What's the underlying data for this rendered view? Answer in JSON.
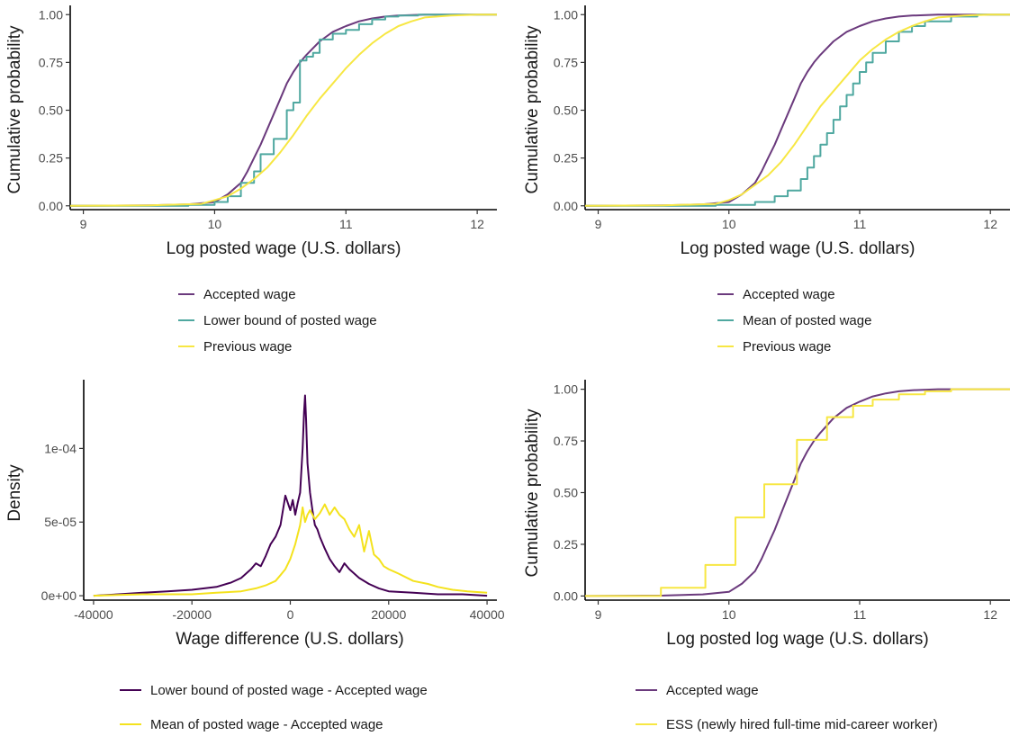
{
  "chart_data": [
    {
      "id": "panel-top-left",
      "type": "line",
      "xlabel": "Log posted wage (U.S. dollars)",
      "ylabel": "Cumulative probability",
      "xlim": [
        8.9,
        12.15
      ],
      "ylim": [
        -0.02,
        1.02
      ],
      "xticks": [
        9,
        10,
        11,
        12
      ],
      "xtick_labels": [
        "9",
        "10",
        "11",
        "12"
      ],
      "yticks": [
        0,
        0.25,
        0.5,
        0.75,
        1
      ],
      "ytick_labels": [
        "0.00",
        "0.25",
        "0.50",
        "0.75",
        "1.00"
      ],
      "grid": false,
      "legend_position": "bottom",
      "series": [
        {
          "name": "Accepted wage",
          "color": "#6b3a7d",
          "step": false,
          "x": [
            8.9,
            9.5,
            9.8,
            10.0,
            10.1,
            10.2,
            10.25,
            10.3,
            10.35,
            10.4,
            10.45,
            10.5,
            10.55,
            10.6,
            10.65,
            10.7,
            10.8,
            10.9,
            11.0,
            11.1,
            11.2,
            11.3,
            11.4,
            11.6,
            12.15
          ],
          "y": [
            0,
            0.002,
            0.008,
            0.02,
            0.06,
            0.12,
            0.18,
            0.25,
            0.32,
            0.4,
            0.48,
            0.56,
            0.64,
            0.7,
            0.75,
            0.79,
            0.86,
            0.91,
            0.94,
            0.965,
            0.98,
            0.99,
            0.995,
            1.0,
            1.0
          ]
        },
        {
          "name": "Lower bound of posted wage",
          "color": "#4fa8a0",
          "step": true,
          "x": [
            8.9,
            9.8,
            10.0,
            10.1,
            10.2,
            10.3,
            10.35,
            10.45,
            10.55,
            10.6,
            10.65,
            10.7,
            10.75,
            10.8,
            10.9,
            11.0,
            11.1,
            11.2,
            11.3,
            11.4,
            11.55,
            12.15
          ],
          "y": [
            0,
            0.005,
            0.02,
            0.05,
            0.12,
            0.18,
            0.27,
            0.35,
            0.5,
            0.54,
            0.76,
            0.78,
            0.8,
            0.87,
            0.9,
            0.92,
            0.95,
            0.975,
            0.99,
            0.995,
            1.0,
            1.0
          ]
        },
        {
          "name": "Previous wage",
          "color": "#f7e743",
          "step": false,
          "x": [
            8.9,
            9.5,
            9.9,
            10.0,
            10.1,
            10.2,
            10.3,
            10.4,
            10.5,
            10.6,
            10.7,
            10.8,
            10.9,
            11.0,
            11.1,
            11.2,
            11.3,
            11.4,
            11.5,
            11.6,
            11.8,
            12.0,
            12.15
          ],
          "y": [
            0,
            0.002,
            0.01,
            0.03,
            0.05,
            0.09,
            0.14,
            0.2,
            0.28,
            0.37,
            0.47,
            0.56,
            0.64,
            0.72,
            0.79,
            0.85,
            0.9,
            0.94,
            0.965,
            0.985,
            0.995,
            1.0,
            1.0
          ]
        }
      ]
    },
    {
      "id": "panel-top-right",
      "type": "line",
      "xlabel": "Log posted wage (U.S. dollars)",
      "ylabel": "Cumulative probability",
      "xlim": [
        8.9,
        12.15
      ],
      "ylim": [
        -0.02,
        1.02
      ],
      "xticks": [
        9,
        10,
        11,
        12
      ],
      "xtick_labels": [
        "9",
        "10",
        "11",
        "12"
      ],
      "yticks": [
        0,
        0.25,
        0.5,
        0.75,
        1
      ],
      "ytick_labels": [
        "0.00",
        "0.25",
        "0.50",
        "0.75",
        "1.00"
      ],
      "grid": false,
      "legend_position": "bottom",
      "series": [
        {
          "name": "Accepted wage",
          "color": "#6b3a7d",
          "step": false,
          "x": [
            8.9,
            9.5,
            9.8,
            10.0,
            10.1,
            10.2,
            10.25,
            10.3,
            10.35,
            10.4,
            10.45,
            10.5,
            10.55,
            10.6,
            10.65,
            10.7,
            10.8,
            10.9,
            11.0,
            11.1,
            11.2,
            11.3,
            11.4,
            11.6,
            12.15
          ],
          "y": [
            0,
            0.002,
            0.008,
            0.02,
            0.06,
            0.12,
            0.18,
            0.25,
            0.32,
            0.4,
            0.48,
            0.56,
            0.64,
            0.7,
            0.75,
            0.79,
            0.86,
            0.91,
            0.94,
            0.965,
            0.98,
            0.99,
            0.995,
            1.0,
            1.0
          ]
        },
        {
          "name": "Mean of posted wage",
          "color": "#4fa8a0",
          "step": true,
          "x": [
            8.9,
            9.9,
            10.2,
            10.35,
            10.45,
            10.55,
            10.6,
            10.65,
            10.7,
            10.75,
            10.8,
            10.85,
            10.9,
            10.95,
            11.0,
            11.05,
            11.1,
            11.2,
            11.3,
            11.4,
            11.5,
            11.7,
            11.9,
            12.15
          ],
          "y": [
            0,
            0.005,
            0.02,
            0.05,
            0.08,
            0.14,
            0.2,
            0.26,
            0.32,
            0.38,
            0.45,
            0.52,
            0.58,
            0.64,
            0.7,
            0.75,
            0.8,
            0.86,
            0.91,
            0.94,
            0.965,
            0.99,
            1.0,
            1.0
          ]
        },
        {
          "name": "Previous wage",
          "color": "#f7e743",
          "step": false,
          "x": [
            8.9,
            9.5,
            9.9,
            10.0,
            10.1,
            10.2,
            10.3,
            10.4,
            10.5,
            10.6,
            10.7,
            10.8,
            10.9,
            11.0,
            11.1,
            11.2,
            11.3,
            11.4,
            11.5,
            11.6,
            11.8,
            12.0,
            12.15
          ],
          "y": [
            0,
            0.002,
            0.01,
            0.03,
            0.06,
            0.11,
            0.16,
            0.23,
            0.32,
            0.42,
            0.52,
            0.6,
            0.68,
            0.76,
            0.82,
            0.87,
            0.91,
            0.94,
            0.965,
            0.985,
            0.995,
            1.0,
            1.0
          ]
        }
      ]
    },
    {
      "id": "panel-bottom-left",
      "type": "line",
      "xlabel": "Wage difference (U.S. dollars)",
      "ylabel": "Density",
      "xlim": [
        -42000,
        42000
      ],
      "ylim": [
        -3e-06,
        0.000143
      ],
      "xticks": [
        -40000,
        -20000,
        0,
        20000,
        40000
      ],
      "xtick_labels": [
        "-40000",
        "-20000",
        "0",
        "20000",
        "40000"
      ],
      "yticks": [
        0,
        5e-05,
        0.0001
      ],
      "ytick_labels": [
        "0e+00",
        "5e-05",
        "1e-04"
      ],
      "grid": false,
      "legend_position": "bottom",
      "series": [
        {
          "name": "Lower bound of posted wage - Accepted wage",
          "color": "#440154",
          "step": false,
          "x": [
            -40000,
            -35000,
            -30000,
            -25000,
            -20000,
            -15000,
            -12000,
            -10000,
            -8000,
            -7000,
            -6000,
            -5000,
            -4000,
            -3000,
            -2000,
            -1000,
            0,
            500,
            1000,
            1500,
            2000,
            2500,
            2800,
            3000,
            3200,
            3500,
            4000,
            4500,
            5000,
            5500,
            6000,
            7000,
            8000,
            9000,
            10000,
            11000,
            12000,
            14000,
            16000,
            18000,
            20000,
            25000,
            30000,
            35000,
            40000
          ],
          "y": [
            0,
            1e-06,
            2e-06,
            3e-06,
            4e-06,
            6e-06,
            9e-06,
            1.2e-05,
            1.8e-05,
            2.2e-05,
            2e-05,
            2.7e-05,
            3.5e-05,
            4e-05,
            4.8e-05,
            6.8e-05,
            5.8e-05,
            6.5e-05,
            5.5e-05,
            6.3e-05,
            7e-05,
            0.0001,
            0.000125,
            0.000136,
            0.00012,
            9e-05,
            7e-05,
            5.8e-05,
            4.8e-05,
            4.5e-05,
            4e-05,
            3.2e-05,
            2.5e-05,
            2e-05,
            1.6e-05,
            2.2e-05,
            1.8e-05,
            1.2e-05,
            8e-06,
            5e-06,
            3e-06,
            2e-06,
            1e-06,
            1e-06,
            0
          ]
        },
        {
          "name": "Mean of posted wage - Accepted wage",
          "color": "#f4e21d",
          "step": false,
          "x": [
            -40000,
            -30000,
            -20000,
            -15000,
            -10000,
            -7000,
            -5000,
            -3000,
            -2000,
            -1000,
            0,
            1000,
            2000,
            2500,
            3000,
            3500,
            4000,
            5000,
            6000,
            7000,
            8000,
            9000,
            10000,
            11000,
            12000,
            13000,
            14000,
            15000,
            16000,
            17000,
            18000,
            19000,
            20000,
            22000,
            25000,
            28000,
            30000,
            33000,
            36000,
            40000
          ],
          "y": [
            0,
            1e-06,
            1e-06,
            2e-06,
            3e-06,
            5e-06,
            7e-06,
            1e-05,
            1.4e-05,
            1.8e-05,
            2.5e-05,
            3.5e-05,
            4.8e-05,
            6e-05,
            5e-05,
            5.5e-05,
            5.8e-05,
            5.2e-05,
            5.6e-05,
            6.2e-05,
            5.5e-05,
            6e-05,
            5.5e-05,
            5.2e-05,
            4.5e-05,
            4e-05,
            4.8e-05,
            3e-05,
            4.4e-05,
            2.8e-05,
            2.5e-05,
            2e-05,
            1.8e-05,
            1.5e-05,
            1e-05,
            8e-06,
            6e-06,
            4e-06,
            3e-06,
            2e-06
          ]
        }
      ]
    },
    {
      "id": "panel-bottom-right",
      "type": "line",
      "xlabel": "Log posted log wage (U.S. dollars)",
      "ylabel": "Cumulative probability",
      "xlim": [
        8.9,
        12.15
      ],
      "ylim": [
        -0.02,
        1.02
      ],
      "xticks": [
        9,
        10,
        11,
        12
      ],
      "xtick_labels": [
        "9",
        "10",
        "11",
        "12"
      ],
      "yticks": [
        0,
        0.25,
        0.5,
        0.75,
        1
      ],
      "ytick_labels": [
        "0.00",
        "0.25",
        "0.50",
        "0.75",
        "1.00"
      ],
      "grid": false,
      "legend_position": "bottom",
      "series": [
        {
          "name": "Accepted wage",
          "color": "#6b3a7d",
          "step": false,
          "x": [
            8.9,
            9.5,
            9.8,
            10.0,
            10.1,
            10.2,
            10.25,
            10.3,
            10.35,
            10.4,
            10.45,
            10.5,
            10.55,
            10.6,
            10.65,
            10.7,
            10.8,
            10.9,
            11.0,
            11.1,
            11.2,
            11.3,
            11.4,
            11.6,
            12.15
          ],
          "y": [
            0,
            0.002,
            0.008,
            0.02,
            0.06,
            0.12,
            0.18,
            0.25,
            0.32,
            0.4,
            0.48,
            0.56,
            0.64,
            0.7,
            0.75,
            0.79,
            0.86,
            0.91,
            0.94,
            0.965,
            0.98,
            0.99,
            0.995,
            1.0,
            1.0
          ]
        },
        {
          "name": "ESS (newly hired full-time mid-career worker)",
          "color": "#f7e743",
          "step": true,
          "x": [
            8.9,
            9.48,
            9.82,
            10.05,
            10.27,
            10.52,
            10.75,
            10.95,
            11.1,
            11.3,
            11.5,
            11.7,
            12.15
          ],
          "y": [
            0,
            0.04,
            0.15,
            0.38,
            0.54,
            0.755,
            0.865,
            0.92,
            0.95,
            0.975,
            0.99,
            1.0,
            1.0
          ]
        }
      ]
    }
  ]
}
